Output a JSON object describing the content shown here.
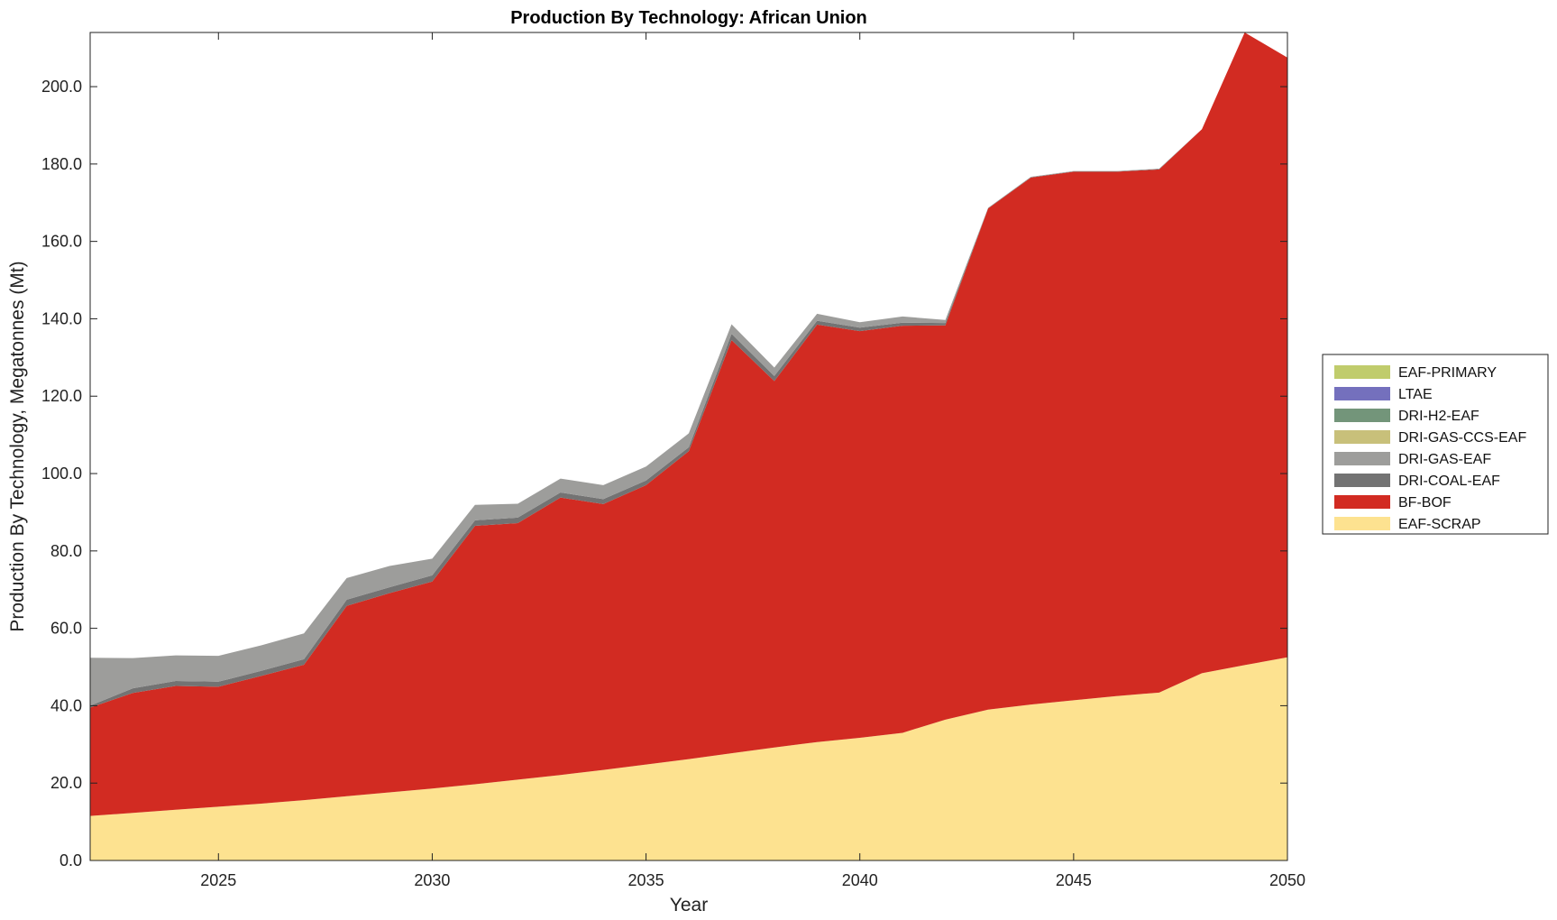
{
  "chart_data": {
    "type": "area",
    "stacked": true,
    "title": "Production By Technology: African Union",
    "xlabel": "Year",
    "ylabel": "Production By Technology, Megatonnes (Mt)",
    "xlim": [
      2022,
      2050
    ],
    "ylim": [
      0,
      214
    ],
    "xticks": [
      2025,
      2030,
      2035,
      2040,
      2045,
      2050
    ],
    "xtick_labels": [
      "2025",
      "2030",
      "2035",
      "2040",
      "2045",
      "2050"
    ],
    "yticks": [
      0,
      20,
      40,
      60,
      80,
      100,
      120,
      140,
      160,
      180,
      200
    ],
    "ytick_labels": [
      "0.0",
      "20.0",
      "40.0",
      "60.0",
      "80.0",
      "100.0",
      "120.0",
      "140.0",
      "160.0",
      "180.0",
      "200.0"
    ],
    "x": [
      2022,
      2023,
      2024,
      2025,
      2026,
      2027,
      2028,
      2029,
      2030,
      2031,
      2032,
      2033,
      2034,
      2035,
      2036,
      2037,
      2038,
      2039,
      2040,
      2041,
      2042,
      2043,
      2044,
      2045,
      2046,
      2047,
      2048,
      2049,
      2050
    ],
    "series": [
      {
        "name": "EAF-SCRAP",
        "color": "#fde290",
        "values": [
          11.5,
          12.3,
          13.1,
          13.9,
          14.7,
          15.6,
          16.6,
          17.6,
          18.6,
          19.7,
          20.9,
          22.1,
          23.4,
          24.8,
          26.2,
          27.7,
          29.2,
          30.6,
          31.7,
          33.0,
          36.4,
          39.0,
          40.3,
          41.4,
          42.5,
          43.4,
          48.4,
          50.5,
          52.5
        ]
      },
      {
        "name": "BF-BOF",
        "color": "#d22b22",
        "values": [
          28.0,
          31.0,
          32.0,
          31.0,
          33.0,
          35.0,
          49.2,
          51.5,
          53.5,
          66.8,
          66.3,
          71.7,
          68.7,
          72.2,
          79.6,
          106.8,
          94.7,
          107.9,
          105.1,
          105.2,
          101.9,
          129.5,
          136.2,
          136.6,
          135.5,
          135.2,
          140.6,
          163.5,
          155.0
        ]
      },
      {
        "name": "DRI-COAL-EAF",
        "color": "#737373",
        "values": [
          0.5,
          1.2,
          1.3,
          1.3,
          1.3,
          1.4,
          1.6,
          1.5,
          1.6,
          1.4,
          1.4,
          1.3,
          1.3,
          1.2,
          1.0,
          1.6,
          1.3,
          1.0,
          0.9,
          0.8,
          0.6,
          0.1,
          0.1,
          0.1,
          0.1,
          0.1,
          0.0,
          0.0,
          0.0
        ]
      },
      {
        "name": "DRI-GAS-EAF",
        "color": "#9d9d9b",
        "values": [
          12.4,
          7.8,
          6.6,
          6.7,
          6.6,
          6.7,
          5.6,
          5.5,
          4.3,
          4.0,
          3.6,
          3.6,
          3.6,
          3.6,
          3.6,
          2.5,
          2.2,
          1.8,
          1.4,
          1.6,
          0.8,
          0.1,
          0.1,
          0.1,
          0.1,
          0.1,
          0.0,
          0.0,
          0.0
        ]
      },
      {
        "name": "DRI-GAS-CCS-EAF",
        "color": "#c8c07a",
        "values": [
          0,
          0,
          0,
          0,
          0,
          0,
          0,
          0,
          0,
          0,
          0,
          0,
          0,
          0,
          0,
          0,
          0,
          0,
          0,
          0,
          0,
          0,
          0,
          0,
          0,
          0,
          0,
          0,
          0
        ]
      },
      {
        "name": "DRI-H2-EAF",
        "color": "#73957a",
        "values": [
          0,
          0,
          0,
          0,
          0,
          0,
          0,
          0,
          0,
          0,
          0,
          0,
          0,
          0,
          0,
          0,
          0,
          0,
          0,
          0,
          0,
          0,
          0,
          0,
          0,
          0,
          0,
          0,
          0
        ]
      },
      {
        "name": "LTAE",
        "color": "#7470bd",
        "values": [
          0,
          0,
          0,
          0,
          0,
          0,
          0,
          0,
          0,
          0,
          0,
          0,
          0,
          0,
          0,
          0,
          0,
          0,
          0,
          0,
          0,
          0,
          0,
          0,
          0,
          0,
          0,
          0,
          0
        ]
      },
      {
        "name": "EAF-PRIMARY",
        "color": "#c0cc6c",
        "values": [
          0,
          0,
          0,
          0,
          0,
          0,
          0,
          0,
          0,
          0,
          0,
          0,
          0,
          0,
          0,
          0,
          0,
          0,
          0,
          0,
          0,
          0,
          0,
          0,
          0,
          0,
          0,
          0,
          0
        ]
      }
    ],
    "legend_order": [
      "EAF-PRIMARY",
      "LTAE",
      "DRI-H2-EAF",
      "DRI-GAS-CCS-EAF",
      "DRI-GAS-EAF",
      "DRI-COAL-EAF",
      "BF-BOF",
      "EAF-SCRAP"
    ],
    "legend_position": "outside-right",
    "grid": false
  }
}
